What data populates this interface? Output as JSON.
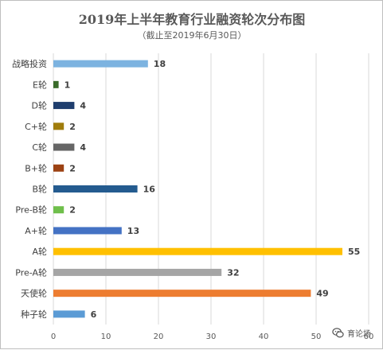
{
  "chart_data": {
    "type": "bar",
    "orientation": "horizontal",
    "title": "2019年上半年教育行业融资轮次分布图",
    "subtitle": "（截止至2019年6月30日）",
    "categories": [
      "战略投资",
      "E轮",
      "D轮",
      "C+轮",
      "C轮",
      "B+轮",
      "B轮",
      "Pre-B轮",
      "A+轮",
      "A轮",
      "Pre-A轮",
      "天使轮",
      "种子轮"
    ],
    "values": [
      18,
      1,
      4,
      2,
      4,
      2,
      16,
      2,
      13,
      55,
      32,
      49,
      6
    ],
    "colors": [
      "#7cb3e0",
      "#3a6b2a",
      "#1f3e6e",
      "#a07d0c",
      "#666666",
      "#9c4213",
      "#245b8f",
      "#6fbf4b",
      "#4472c4",
      "#ffc000",
      "#a5a5a5",
      "#ed7d31",
      "#5b9bd5"
    ],
    "xlim": [
      0,
      60
    ],
    "xticks": [
      "0",
      "10",
      "20",
      "30",
      "40",
      "50",
      "60"
    ],
    "grid": true,
    "legend": "none"
  },
  "watermark": {
    "text": "育论场",
    "icon": "chat-bubble-icon"
  }
}
